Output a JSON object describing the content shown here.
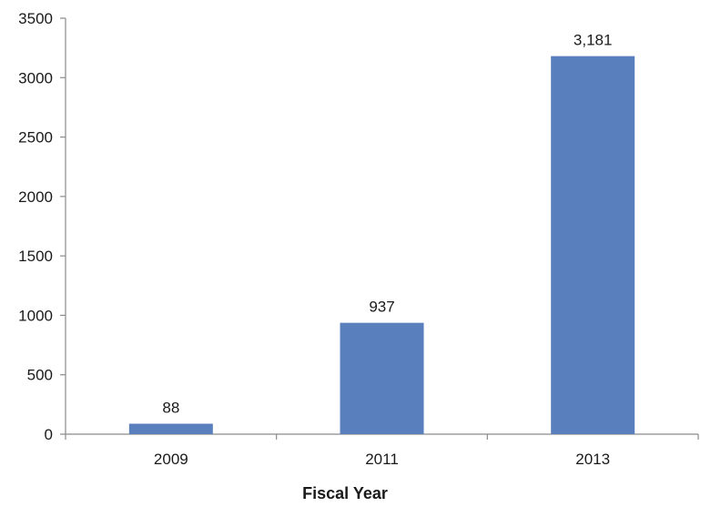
{
  "chart_data": {
    "type": "bar",
    "categories": [
      "2009",
      "2011",
      "2013"
    ],
    "values": [
      88,
      937,
      3181
    ],
    "value_labels": [
      "88",
      "937",
      "3,181"
    ],
    "title": "",
    "xlabel": "Fiscal Year",
    "ylabel": "",
    "ylim": [
      0,
      3500
    ],
    "yticks": [
      0,
      500,
      1000,
      1500,
      2000,
      2500,
      3000,
      3500
    ],
    "ytick_labels": [
      "0",
      "500",
      "1000",
      "1500",
      "2000",
      "2500",
      "3000",
      "3500"
    ],
    "grid": false,
    "legend": "none",
    "colors": {
      "bar": "#5a7fbd",
      "axis": "#8a8a8a",
      "text": "#1a1a1a"
    }
  }
}
